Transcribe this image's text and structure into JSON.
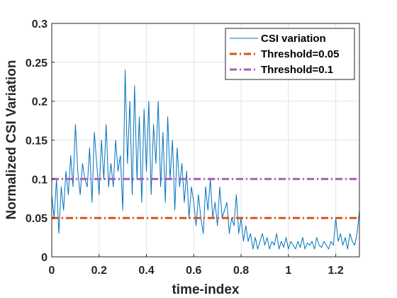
{
  "chart_data": {
    "type": "line",
    "title": "",
    "xlabel": "time-index",
    "ylabel": "Normalized CSI Variation",
    "xlim": [
      0,
      1.3
    ],
    "ylim": [
      0,
      0.3
    ],
    "xticks": [
      0,
      0.2,
      0.4,
      0.6,
      0.8,
      1,
      1.2
    ],
    "xtick_labels": [
      "0",
      "0.2",
      "0.4",
      "0.6",
      "0.8",
      "1",
      "1.2"
    ],
    "yticks": [
      0,
      0.05,
      0.1,
      0.15,
      0.2,
      0.25,
      0.3
    ],
    "ytick_labels": [
      "0",
      "0.05",
      "0.1",
      "0.15",
      "0.2",
      "0.25",
      "0.3"
    ],
    "grid": true,
    "legend_position": "top-right",
    "series": [
      {
        "name": "CSI variation",
        "color": "#0072BD",
        "style": "solid",
        "x": [
          0,
          0.01,
          0.02,
          0.03,
          0.04,
          0.05,
          0.06,
          0.07,
          0.08,
          0.09,
          0.1,
          0.11,
          0.12,
          0.13,
          0.14,
          0.15,
          0.16,
          0.17,
          0.18,
          0.19,
          0.2,
          0.21,
          0.22,
          0.23,
          0.24,
          0.25,
          0.26,
          0.27,
          0.28,
          0.29,
          0.3,
          0.31,
          0.32,
          0.33,
          0.34,
          0.35,
          0.36,
          0.37,
          0.38,
          0.39,
          0.4,
          0.41,
          0.42,
          0.43,
          0.44,
          0.45,
          0.46,
          0.47,
          0.48,
          0.49,
          0.5,
          0.51,
          0.52,
          0.53,
          0.54,
          0.55,
          0.56,
          0.57,
          0.58,
          0.59,
          0.6,
          0.61,
          0.62,
          0.63,
          0.64,
          0.65,
          0.66,
          0.67,
          0.68,
          0.69,
          0.7,
          0.71,
          0.72,
          0.73,
          0.74,
          0.75,
          0.76,
          0.77,
          0.78,
          0.79,
          0.8,
          0.81,
          0.82,
          0.83,
          0.84,
          0.85,
          0.86,
          0.87,
          0.88,
          0.89,
          0.9,
          0.91,
          0.92,
          0.93,
          0.94,
          0.95,
          0.96,
          0.97,
          0.98,
          0.99,
          1,
          1.01,
          1.02,
          1.03,
          1.04,
          1.05,
          1.06,
          1.07,
          1.08,
          1.09,
          1.1,
          1.11,
          1.12,
          1.13,
          1.14,
          1.15,
          1.16,
          1.17,
          1.18,
          1.19,
          1.2,
          1.21,
          1.22,
          1.23,
          1.24,
          1.25,
          1.26,
          1.27,
          1.28,
          1.29,
          1.3
        ],
        "y": [
          0.08,
          0.05,
          0.1,
          0.03,
          0.09,
          0.06,
          0.11,
          0.08,
          0.13,
          0.09,
          0.17,
          0.11,
          0.08,
          0.12,
          0.1,
          0.09,
          0.14,
          0.07,
          0.16,
          0.12,
          0.08,
          0.15,
          0.1,
          0.17,
          0.09,
          0.12,
          0.09,
          0.15,
          0.11,
          0.13,
          0.06,
          0.24,
          0.12,
          0.2,
          0.08,
          0.22,
          0.1,
          0.18,
          0.07,
          0.19,
          0.11,
          0.2,
          0.08,
          0.17,
          0.12,
          0.2,
          0.09,
          0.16,
          0.07,
          0.18,
          0.1,
          0.15,
          0.06,
          0.14,
          0.09,
          0.12,
          0.07,
          0.11,
          0.05,
          0.09,
          0.07,
          0.04,
          0.08,
          0.05,
          0.03,
          0.09,
          0.06,
          0.1,
          0.05,
          0.07,
          0.04,
          0.09,
          0.05,
          0.06,
          0.07,
          0.03,
          0.05,
          0.04,
          0.08,
          0.03,
          0.05,
          0.02,
          0.04,
          0.02,
          0.03,
          0.01,
          0.025,
          0.01,
          0.02,
          0.03,
          0.015,
          0.025,
          0.01,
          0.02,
          0.015,
          0.03,
          0.01,
          0.02,
          0.012,
          0.025,
          0.01,
          0.02,
          0.015,
          0.01,
          0.02,
          0.012,
          0.025,
          0.01,
          0.018,
          0.015,
          0.02,
          0.01,
          0.025,
          0.015,
          0.012,
          0.02,
          0.015,
          0.01,
          0.02,
          0.015,
          0.05,
          0.02,
          0.03,
          0.015,
          0.025,
          0.01,
          0.03,
          0.02,
          0.015,
          0.03,
          0.06
        ]
      },
      {
        "name": "Threshold=0.05",
        "color": "#D95319",
        "style": "dash-dot",
        "x": [
          0,
          1.3
        ],
        "y": [
          0.05,
          0.05
        ]
      },
      {
        "name": "Threshold=0.1",
        "color": "#A65FB4",
        "style": "dash-dot",
        "x": [
          0,
          1.3
        ],
        "y": [
          0.1,
          0.1
        ]
      }
    ]
  }
}
